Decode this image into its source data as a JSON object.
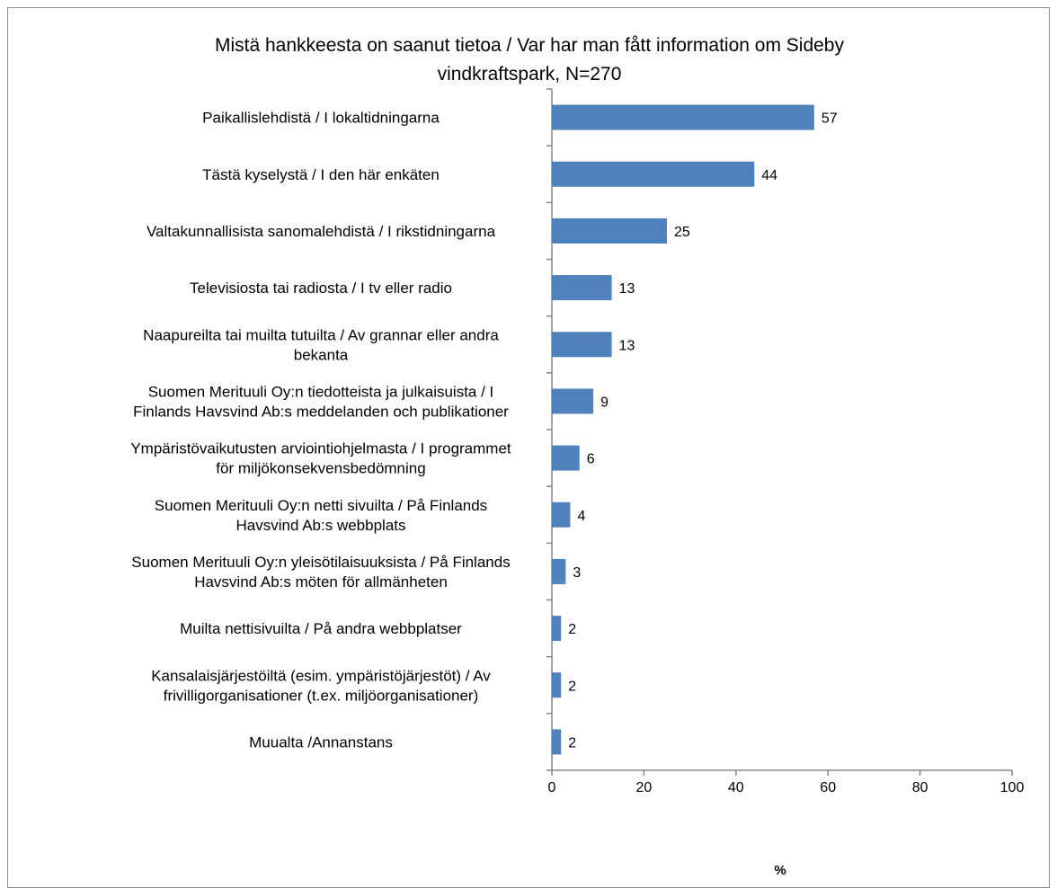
{
  "chart_data": {
    "type": "bar",
    "orientation": "horizontal",
    "title": "Mistä hankkeesta on saanut tietoa / Var har man fått information om Sideby vindkraftspark, N=270",
    "xlabel": "%",
    "ylabel": "",
    "xlim": [
      0,
      100
    ],
    "xticks": [
      0,
      20,
      40,
      60,
      80,
      100
    ],
    "grid": false,
    "legend": "none",
    "bar_color": "#4f81bd",
    "categories": [
      [
        "Paikallislehdistä / I lokaltidningarna"
      ],
      [
        "Tästä kyselystä / I den här enkäten"
      ],
      [
        "Valtakunnallisista sanomalehdistä / I rikstidningarna"
      ],
      [
        "Televisiosta tai radiosta / I tv eller radio"
      ],
      [
        "Naapureilta tai muilta tutuilta / Av grannar eller andra",
        "bekanta"
      ],
      [
        "Suomen Merituuli Oy:n tiedotteista ja julkaisuista / I",
        "Finlands Havsvind Ab:s meddelanden och publikationer"
      ],
      [
        "Ympäristövaikutusten arviointiohjelmasta / I programmet",
        "för miljökonsekvensbedömning"
      ],
      [
        "Suomen Merituuli Oy:n netti sivuilta / På Finlands",
        "Havsvind Ab:s webbplats"
      ],
      [
        "Suomen Merituuli Oy:n yleisötilaisuuksista / På Finlands",
        "Havsvind Ab:s möten för allmänheten"
      ],
      [
        "Muilta nettisivuilta / På andra webbplatser"
      ],
      [
        "Kansalaisjärjestöiltä (esim. ympäristöjärjestöt) / Av",
        "frivilligorganisationer (t.ex. miljöorganisationer)"
      ],
      [
        "Muualta /Annanstans"
      ]
    ],
    "values": [
      57,
      44,
      25,
      13,
      13,
      9,
      6,
      4,
      3,
      2,
      2,
      2
    ],
    "value_labels": [
      "57",
      "44",
      "25",
      "13",
      "13",
      "9",
      "6",
      "4",
      "3",
      "2",
      "2",
      "2"
    ]
  }
}
